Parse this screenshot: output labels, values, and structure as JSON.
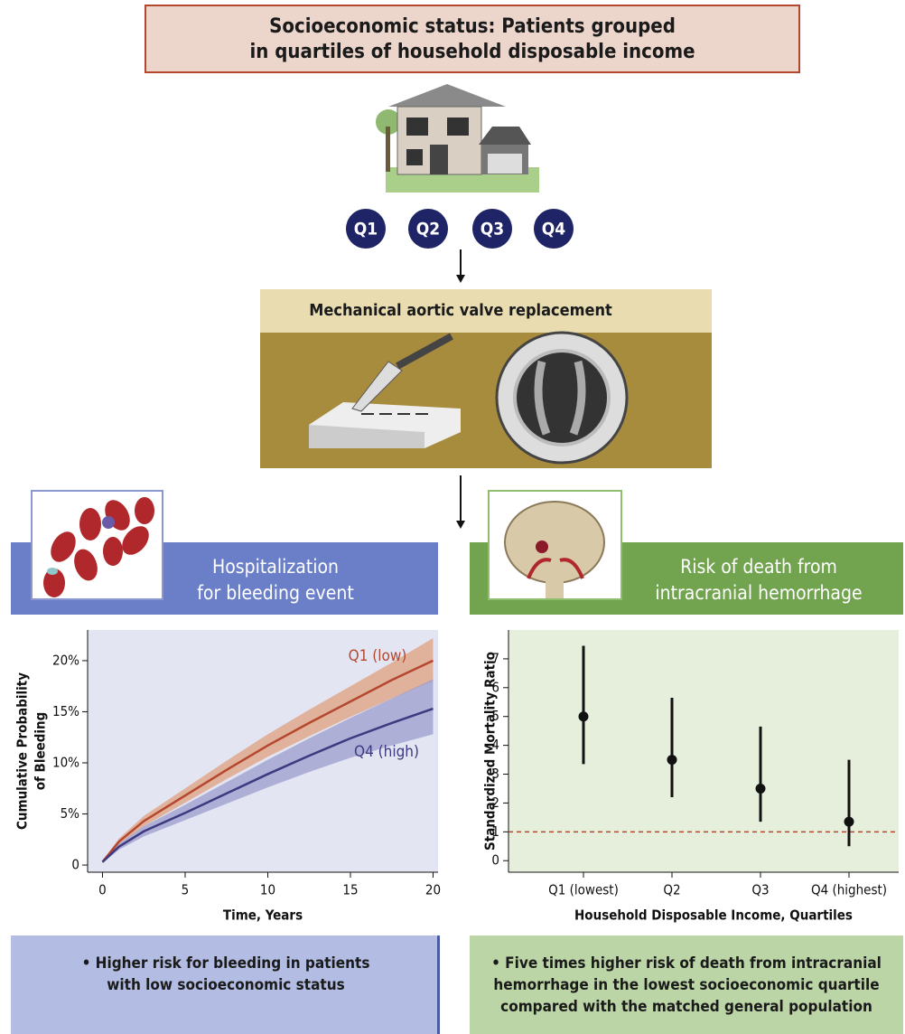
{
  "header": {
    "title": [
      "Socioeconomic status: Patients grouped",
      "in quartiles of household disposable income"
    ]
  },
  "quartiles": [
    "Q1",
    "Q2",
    "Q3",
    "Q4"
  ],
  "procedure": "Mechanical aortic valve replacement",
  "left_panel": {
    "title": [
      "Hospitalization",
      "for bleeding event"
    ],
    "finding": [
      "• Higher risk for bleeding in patients",
      "with low socioeconomic status"
    ]
  },
  "right_panel": {
    "title": [
      "Risk of death from",
      "intracranial hemorrhage"
    ],
    "finding": [
      "• Five times higher risk of death from intracranial",
      "hemorrhage in the lowest socioeconomic quartile",
      "compared with the matched general population"
    ]
  },
  "chart_data": [
    {
      "type": "line",
      "xlabel": "Time, Years",
      "ylabel": [
        "Cumulative Probability",
        "of Bleeding"
      ],
      "x": [
        0,
        1,
        2.5,
        5,
        7.5,
        10,
        12.5,
        15,
        17.5,
        20
      ],
      "xlim": [
        -0.9,
        20.3
      ],
      "xticks": [
        0,
        5,
        10,
        15,
        20
      ],
      "ylim": [
        -0.7,
        23
      ],
      "yticks": [
        0,
        {
          "value": 5,
          "label": "5%"
        },
        {
          "value": 10,
          "label": "10%"
        },
        {
          "value": 15,
          "label": "15%"
        },
        {
          "value": 20,
          "label": "20%"
        }
      ],
      "series": [
        {
          "name": "Q1 (low)",
          "color": "#b5472e",
          "band_color": "#e0a07e",
          "values": [
            0.3,
            2.3,
            4.3,
            6.8,
            9.3,
            11.7,
            13.9,
            16.0,
            18.1,
            20.0
          ],
          "lower": [
            0.2,
            2.0,
            3.8,
            6.1,
            8.4,
            10.6,
            12.6,
            14.5,
            16.3,
            18.0
          ],
          "upper": [
            0.4,
            2.6,
            4.8,
            7.5,
            10.2,
            12.8,
            15.2,
            17.5,
            19.8,
            22.2
          ]
        },
        {
          "name": "Q4 (high)",
          "color": "#3d3a80",
          "band_color": "#9c9ccc",
          "values": [
            0.3,
            1.8,
            3.3,
            5.1,
            7.0,
            8.9,
            10.7,
            12.4,
            13.9,
            15.3
          ],
          "lower": [
            0.2,
            1.5,
            2.8,
            4.4,
            6.0,
            7.6,
            9.1,
            10.5,
            11.7,
            12.8
          ],
          "upper": [
            0.4,
            2.1,
            3.8,
            5.9,
            8.1,
            10.3,
            12.4,
            14.4,
            16.3,
            18.2
          ]
        }
      ]
    },
    {
      "type": "errorbar",
      "xlabel": "Household Disposable Income, Quartiles",
      "ylabel": "Standardized Mortality Ratio",
      "categories": [
        "Q1 (lowest)",
        "Q2",
        "Q3",
        "Q4 (highest)"
      ],
      "values": [
        5.0,
        3.5,
        2.5,
        1.35
      ],
      "lower": [
        3.35,
        2.2,
        1.35,
        0.5
      ],
      "upper": [
        7.45,
        5.65,
        4.65,
        3.5
      ],
      "ylim": [
        -0.4,
        8.0
      ],
      "yticks": [
        0,
        1,
        2,
        3,
        4,
        5,
        6,
        7
      ],
      "reference_line": 1,
      "color": "#111111",
      "reference_color": "#b5472e"
    }
  ]
}
